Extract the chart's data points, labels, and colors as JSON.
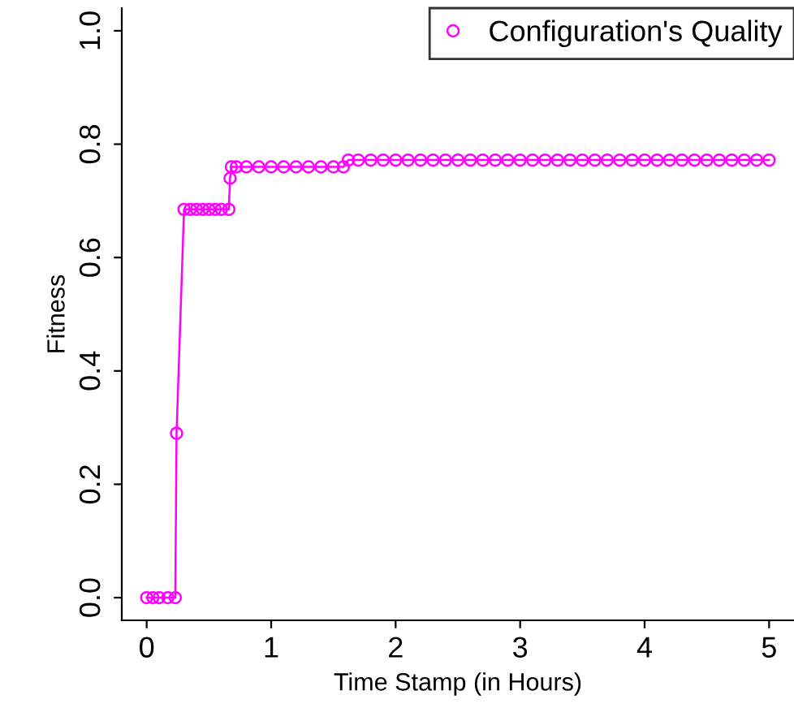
{
  "chart_data": {
    "type": "line",
    "xlabel": "Time Stamp (in Hours)",
    "ylabel": "Fitness",
    "xlim": [
      -0.2,
      5.2
    ],
    "ylim": [
      -0.04,
      1.04
    ],
    "xticks": [
      0,
      1,
      2,
      3,
      4,
      5
    ],
    "yticks": [
      {
        "value": 0,
        "label": "0.0"
      },
      {
        "value": 0.2,
        "label": "0.2"
      },
      {
        "value": 0.4,
        "label": "0.4"
      },
      {
        "value": 0.6,
        "label": "0.6"
      },
      {
        "value": 0.8,
        "label": "0.8"
      },
      {
        "value": 1,
        "label": "1.0"
      }
    ],
    "marker": "circle",
    "line_style": "solid",
    "grid": false,
    "legend": "top right",
    "series": [
      {
        "name": "Configuration's Quality",
        "color": "#ff00ff",
        "x": [
          0,
          0.05,
          0.1,
          0.17,
          0.23,
          0.24,
          0.3,
          0.35,
          0.4,
          0.45,
          0.5,
          0.55,
          0.6,
          0.66,
          0.67,
          0.68,
          0.72,
          0.8,
          0.9,
          1.0,
          1.1,
          1.2,
          1.3,
          1.4,
          1.5,
          1.58,
          1.62,
          1.7,
          1.8,
          1.9,
          2.0,
          2.1,
          2.2,
          2.3,
          2.4,
          2.5,
          2.6,
          2.7,
          2.8,
          2.9,
          3.0,
          3.1,
          3.2,
          3.3,
          3.4,
          3.5,
          3.6,
          3.7,
          3.8,
          3.9,
          4.0,
          4.1,
          4.2,
          4.3,
          4.4,
          4.5,
          4.6,
          4.7,
          4.8,
          4.9,
          5.0
        ],
        "values": [
          0,
          0,
          0,
          0,
          0,
          0.29,
          0.685,
          0.685,
          0.685,
          0.685,
          0.685,
          0.685,
          0.685,
          0.685,
          0.74,
          0.76,
          0.76,
          0.76,
          0.76,
          0.76,
          0.76,
          0.76,
          0.76,
          0.76,
          0.76,
          0.76,
          0.772,
          0.772,
          0.772,
          0.772,
          0.772,
          0.772,
          0.772,
          0.772,
          0.772,
          0.772,
          0.772,
          0.772,
          0.772,
          0.772,
          0.772,
          0.772,
          0.772,
          0.772,
          0.772,
          0.772,
          0.772,
          0.772,
          0.772,
          0.772,
          0.772,
          0.772,
          0.772,
          0.772,
          0.772,
          0.772,
          0.772,
          0.772,
          0.772,
          0.772,
          0.772
        ]
      }
    ]
  }
}
